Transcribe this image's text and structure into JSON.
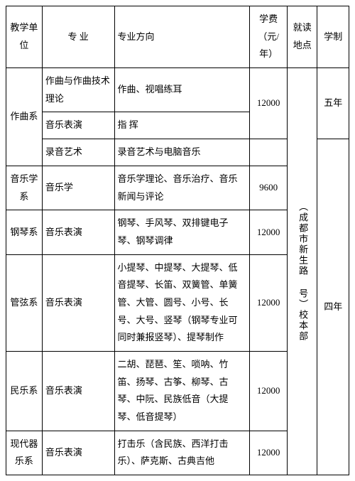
{
  "header": {
    "dept": "教学单位",
    "major": "专 业",
    "direction": "专业方向",
    "fee": "学费（元/年）",
    "location": "就读地点",
    "duration": "学制"
  },
  "depts": {
    "zuoqu": "作曲系",
    "yinyuexue": "音乐学系",
    "gangqin": "钢琴系",
    "guanxian": "管弦系",
    "minyue": "民乐系",
    "xiandai": "现代器乐系"
  },
  "majors": {
    "zuoqu_theory": "作曲与作曲技术理论",
    "yinyue_biaoyan": "音乐表演",
    "luyin": "录音艺术",
    "yinyuexue": "音乐学"
  },
  "directions": {
    "zuoqu1": "作曲、视唱练耳",
    "zhihui": "指 挥",
    "luyin": "录音艺术与电脑音乐",
    "yinyuexue": "音乐学理论、音乐治疗、音乐新闻与评论",
    "gangqin": "钢琴、手风琴、双排键电子琴、钢琴调律",
    "guanxian": "小提琴、中提琴、大提琴、低音提琴、长笛、双簧管、单簧管、大管、圆号、小号、长号、大号、竖琴（钢琴专业可同时兼报竖琴）、提琴制作",
    "minyue": "二胡、琵琶、笙、唢呐、竹笛、扬琴、古筝、柳琴、古琴、中阮、民族低音（大提琴、低音提琴）",
    "xiandai": "打击乐（含民族、西洋打击乐）、萨克斯、古典吉他"
  },
  "fees": {
    "f12000": "12000",
    "f9600": "9600"
  },
  "location": "（成都市新生路 号）校本部",
  "durations": {
    "five": "五年",
    "four": "四年"
  }
}
